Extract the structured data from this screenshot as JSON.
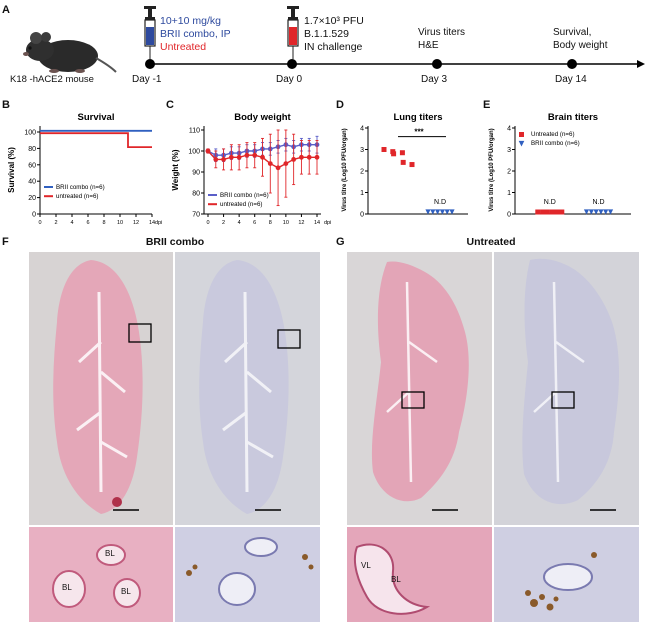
{
  "figure": {
    "panelA": {
      "letter": "A",
      "mouse_label": "K18 -hACE2 mouse",
      "treatment_dose": "10+10 mg/kg",
      "treatment_drug": "BRII combo, IP",
      "treatment_control": "Untreated",
      "challenge_dose": "1.7×10³ PFU",
      "challenge_strain": "B.1.1.529",
      "challenge_route": "IN challenge",
      "day3_line1": "Virus titers",
      "day3_line2": "H&E",
      "day14_line1": "Survival,",
      "day14_line2": "Body weight",
      "days": [
        "Day -1",
        "Day 0",
        "Day 3",
        "Day 14"
      ],
      "colors": {
        "blue": "#2e4a9e",
        "red": "#e0262a"
      }
    },
    "panelB": {
      "letter": "B"
    },
    "panelC": {
      "letter": "C"
    },
    "panelD": {
      "letter": "D"
    },
    "panelE": {
      "letter": "E"
    },
    "panelF": {
      "letter": "F",
      "title": "BRII combo",
      "labels": [
        "BL",
        "BL",
        "BL"
      ]
    },
    "panelG": {
      "letter": "G",
      "title": "Untreated",
      "labels": [
        "VL",
        "BL"
      ]
    }
  },
  "chart_data": [
    {
      "id": "B",
      "type": "line",
      "title": "Survival",
      "ylabel": "Survival (%)",
      "xlabel": "dpi",
      "ylim": [
        0,
        100
      ],
      "xlim": [
        0,
        14
      ],
      "yticks": [
        0,
        20,
        40,
        60,
        80,
        100
      ],
      "xticks": [
        0,
        2,
        4,
        6,
        8,
        10,
        12,
        14
      ],
      "series": [
        {
          "name": "BRII combo (n=6)",
          "color": "#3060c0",
          "x": [
            0,
            14
          ],
          "y": [
            100,
            100
          ],
          "step": true
        },
        {
          "name": "untreated (n=6)",
          "color": "#e0262a",
          "x": [
            0,
            11,
            11,
            14
          ],
          "y": [
            100,
            100,
            83,
            83
          ],
          "step": true
        }
      ],
      "legend": "bottom-left"
    },
    {
      "id": "C",
      "type": "line",
      "title": "Body weight",
      "ylabel": "Weight (%)",
      "xlabel": "dpi",
      "ylim": [
        70,
        110
      ],
      "xlim": [
        0,
        14
      ],
      "yticks": [
        70,
        80,
        90,
        100,
        110
      ],
      "xticks": [
        0,
        2,
        4,
        6,
        8,
        10,
        12,
        14
      ],
      "series": [
        {
          "name": "BRII combo (n=6)",
          "color": "#5a5ec8",
          "x": [
            0,
            1,
            2,
            3,
            4,
            5,
            6,
            7,
            8,
            9,
            10,
            11,
            12,
            13,
            14
          ],
          "y": [
            100,
            98,
            98,
            99,
            99,
            100,
            100,
            101,
            101,
            102,
            103,
            102,
            103,
            103,
            103
          ],
          "err": [
            1,
            3,
            3,
            3,
            3,
            3,
            3,
            3,
            3,
            3,
            3,
            3,
            3,
            3,
            4
          ]
        },
        {
          "name": "untreated (n=6)",
          "color": "#e0262a",
          "x": [
            0,
            1,
            2,
            3,
            4,
            5,
            6,
            7,
            8,
            9,
            10,
            11,
            12,
            13,
            14
          ],
          "y": [
            100,
            96,
            96,
            97,
            97,
            98,
            98,
            97,
            94,
            92,
            94,
            96,
            97,
            97,
            97
          ],
          "err": [
            1,
            4,
            5,
            6,
            6,
            6,
            6,
            9,
            14,
            18,
            16,
            12,
            8,
            8,
            8
          ]
        }
      ],
      "legend": "bottom-left"
    },
    {
      "id": "D",
      "type": "scatter",
      "title": "Lung titers",
      "ylabel": "Virus titre (Log10 PFU/organ)",
      "ylim": [
        0,
        4
      ],
      "yticks": [
        0,
        1,
        2,
        3,
        4
      ],
      "annotation": "***",
      "nd_label": "N.D",
      "series": [
        {
          "name": "Untreated",
          "color": "#e0262a",
          "marker": "square",
          "y": [
            3.0,
            2.9,
            2.8,
            2.85,
            2.4,
            2.3
          ]
        },
        {
          "name": "BRII combo",
          "color": "#3060c0",
          "marker": "triangle-down",
          "y": [
            0,
            0,
            0,
            0,
            0,
            0
          ]
        }
      ]
    },
    {
      "id": "E",
      "type": "scatter",
      "title": "Brain titers",
      "ylabel": "Virus titre (Log10 PFU/organ)",
      "ylim": [
        0,
        4
      ],
      "yticks": [
        0,
        1,
        2,
        3,
        4
      ],
      "nd_label": "N.D",
      "series": [
        {
          "name": "Untreated (n=6)",
          "color": "#e0262a",
          "marker": "square",
          "y": [
            0,
            0,
            0,
            0,
            0,
            0
          ]
        },
        {
          "name": "BRII combo (n=6)",
          "color": "#3060c0",
          "marker": "triangle-down",
          "y": [
            0,
            0,
            0,
            0,
            0,
            0
          ]
        }
      ],
      "legend": "top-left"
    }
  ]
}
